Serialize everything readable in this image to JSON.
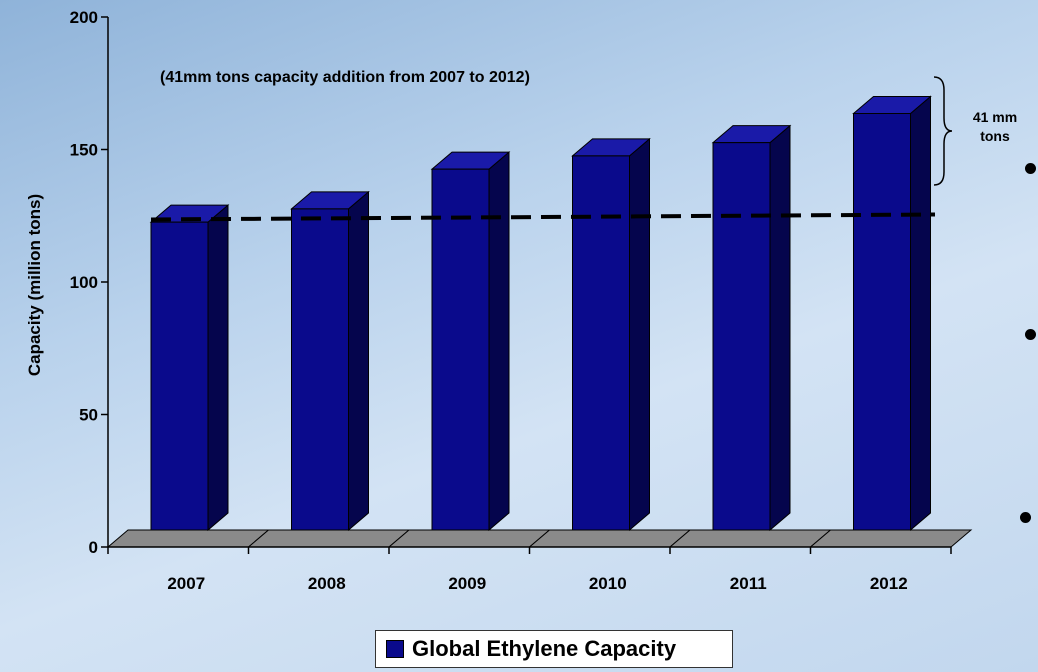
{
  "chart_data": {
    "type": "bar",
    "categories": [
      "2007",
      "2008",
      "2009",
      "2010",
      "2011",
      "2012"
    ],
    "series": [
      {
        "name": "Global Ethylene Capacity",
        "values": [
          129,
          134,
          149,
          154,
          159,
          170
        ]
      }
    ],
    "ylabel": "Capacity (million tons)",
    "xlabel": "",
    "ylim": [
      0,
      200
    ],
    "yticks": [
      0,
      50,
      100,
      150,
      200
    ],
    "legend_position": "bottom-center",
    "reference_line": {
      "value": 130,
      "style": "dashed"
    },
    "annotations": {
      "subtitle": "(41mm tons capacity addition from 2007 to 2012)",
      "brace_label_line1": "41 mm",
      "brace_label_line2": "tons"
    },
    "colors": {
      "bar_front": "#0a0a8c",
      "bar_side": "#05054d",
      "bar_top": "#1a1aa8",
      "floor": "#8a8a8a"
    }
  }
}
